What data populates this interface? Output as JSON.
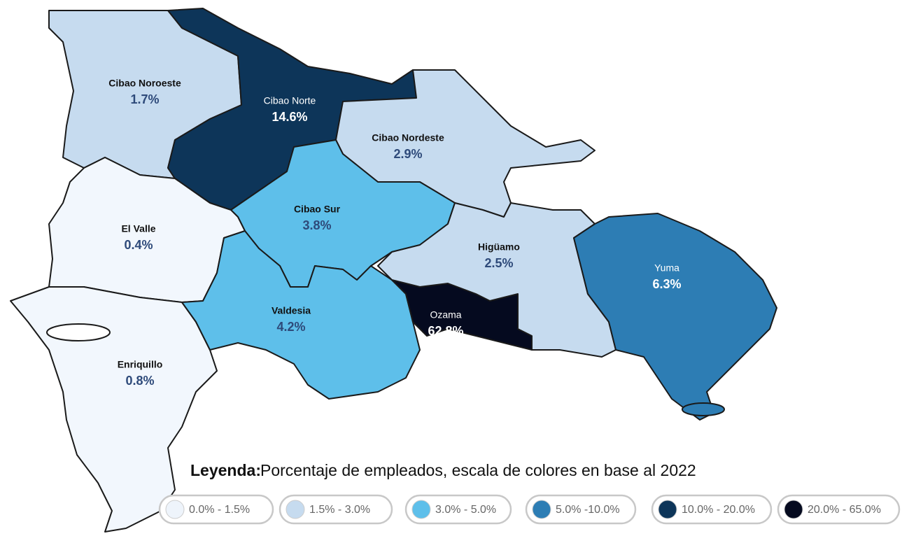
{
  "map": {
    "regions": [
      {
        "name": "Cibao Noroeste",
        "value": "1.7%",
        "color": "#c6dbef"
      },
      {
        "name": "Cibao Norte",
        "value": "14.6%",
        "color": "#0d3559"
      },
      {
        "name": "Cibao Nordeste",
        "value": "2.9%",
        "color": "#c6dbef"
      },
      {
        "name": "Cibao Sur",
        "value": "3.8%",
        "color": "#5ebfea"
      },
      {
        "name": "El Valle",
        "value": "0.4%",
        "color": "#f2f7fd"
      },
      {
        "name": "Enriquillo",
        "value": "0.8%",
        "color": "#f2f7fd"
      },
      {
        "name": "Valdesia",
        "value": "4.2%",
        "color": "#5ebfea"
      },
      {
        "name": "Ozama",
        "value": "62.8%",
        "color": "#050a1f"
      },
      {
        "name": "Higüamo",
        "value": "2.5%",
        "color": "#c6dbef"
      },
      {
        "name": "Yuma",
        "value": "6.3%",
        "color": "#2d7db4"
      }
    ],
    "legend": {
      "title_bold": "Leyenda:",
      "title": "Porcentaje de empleados, escala de colores en base al 2022",
      "items": [
        {
          "label": "0.0% - 1.5%",
          "color": "#eef4fb"
        },
        {
          "label": "1.5% - 3.0%",
          "color": "#c6dbef"
        },
        {
          "label": "3.0% - 5.0%",
          "color": "#5ebfea"
        },
        {
          "label": "5.0% -10.0%",
          "color": "#2d7db4"
        },
        {
          "label": "10.0% - 20.0%",
          "color": "#0d3559"
        },
        {
          "label": "20.0% - 65.0%",
          "color": "#050a1f"
        }
      ]
    }
  }
}
